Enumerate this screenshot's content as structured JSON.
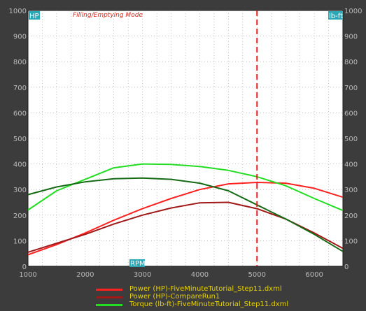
{
  "chart_data": {
    "type": "line",
    "title": "",
    "mode_label": "Filling/Emptying Mode",
    "y_left_tag": "HP",
    "y_right_tag": "lb-ft",
    "x_tag": "RPM",
    "xlim": [
      1000,
      6500
    ],
    "ylim": [
      0,
      1000
    ],
    "x_ticks": [
      1000,
      2000,
      3000,
      4000,
      5000,
      6000
    ],
    "y_ticks": [
      0,
      100,
      200,
      300,
      400,
      500,
      600,
      700,
      800,
      900,
      1000
    ],
    "grid": true,
    "marker_rpm": 5000,
    "legend_position": "bottom",
    "series": [
      {
        "name": "Power (HP)-FiveMinuteTutorial_Step11.dxml",
        "color": "#ff2020",
        "x": [
          1000,
          1500,
          2000,
          2500,
          3000,
          3500,
          4000,
          4500,
          5000,
          5500,
          6000,
          6500
        ],
        "y": [
          45,
          85,
          130,
          180,
          225,
          265,
          300,
          322,
          328,
          325,
          305,
          270
        ]
      },
      {
        "name": "Power (HP)-CompareRun1",
        "color": "#a01818",
        "x": [
          1000,
          1500,
          2000,
          2500,
          3000,
          3500,
          4000,
          4500,
          5000,
          5500,
          6000,
          6500
        ],
        "y": [
          55,
          90,
          125,
          165,
          200,
          228,
          248,
          250,
          225,
          185,
          130,
          70
        ]
      },
      {
        "name": "Torque (lb-ft)-FiveMinuteTutorial_Step11.dxml",
        "color": "#22dd22",
        "x": [
          1000,
          1500,
          2000,
          2500,
          3000,
          3500,
          4000,
          4500,
          5000,
          5500,
          6000,
          6500
        ],
        "y": [
          220,
          295,
          340,
          385,
          400,
          398,
          390,
          375,
          350,
          315,
          265,
          218
        ]
      },
      {
        "name": "",
        "color": "#156b15",
        "x": [
          1000,
          1500,
          2000,
          2500,
          3000,
          3500,
          4000,
          4500,
          5000,
          5500,
          6000,
          6500
        ],
        "y": [
          280,
          310,
          330,
          342,
          345,
          340,
          325,
          295,
          240,
          185,
          125,
          58
        ]
      }
    ]
  }
}
